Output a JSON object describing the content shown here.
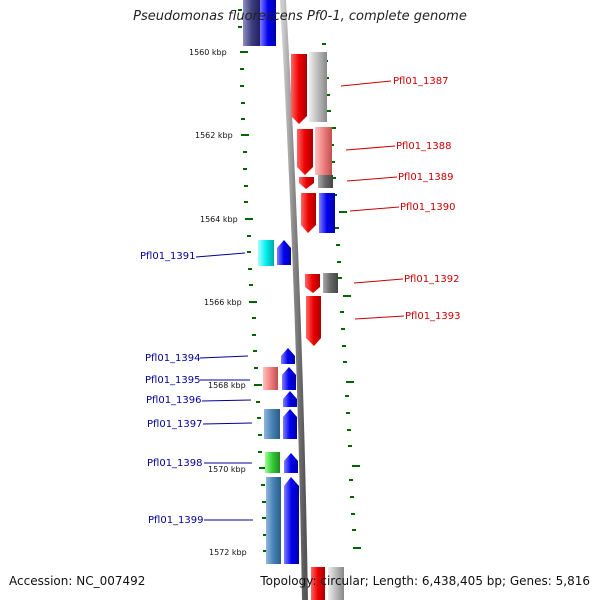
{
  "title": "Pseudomonas fluorescens Pf0-1, complete genome",
  "accession": "Accession: NC_007492",
  "info": "Topology: circular; Length: 6,438,405 bp; Genes: 5,816",
  "scale_labels": [
    "1560 kbp",
    "1562 kbp",
    "1564 kbp",
    "1566 kbp",
    "1568 kbp",
    "1570 kbp",
    "1572 kbp"
  ],
  "colors": {
    "forward_label": "#cc0000",
    "reverse_label": "#000099",
    "tick": "#006600",
    "backbone": "#888888"
  },
  "genes_forward": [
    "Pfl01_1387",
    "Pfl01_1388",
    "Pfl01_1389",
    "Pfl01_1390",
    "Pfl01_1392",
    "Pfl01_1393"
  ],
  "genes_reverse": [
    "Pfl01_1391",
    "Pfl01_1394",
    "Pfl01_1395",
    "Pfl01_1396",
    "Pfl01_1397",
    "Pfl01_1398",
    "Pfl01_1399"
  ]
}
